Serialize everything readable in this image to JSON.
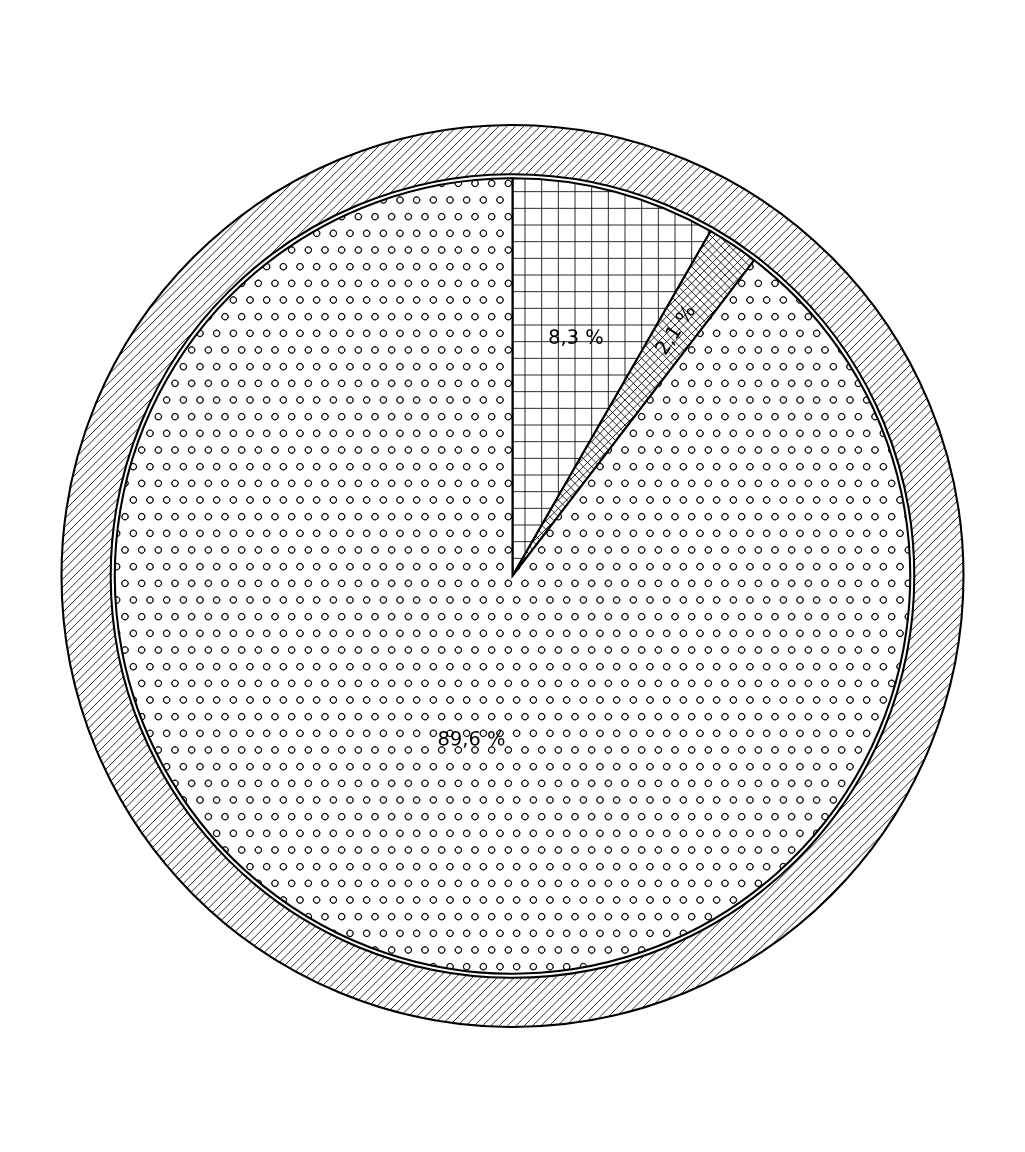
{
  "chart_data": {
    "type": "pie",
    "categories": [
      null,
      null,
      null
    ],
    "series": [
      {
        "values": [
          8.3,
          2.1,
          89.6
        ],
        "colors": [
          "#ffffff",
          "#ffffff",
          "#ffffff"
        ],
        "value_labels": [
          "8,3 %",
          "2,1 %",
          "89,6 %"
        ]
      }
    ]
  }
}
